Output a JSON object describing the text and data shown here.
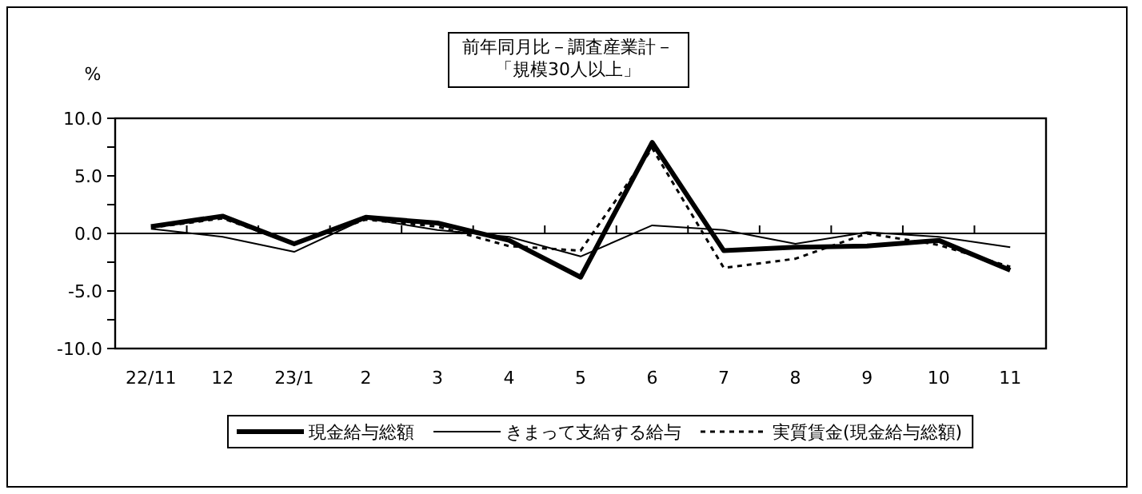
{
  "chart_data": {
    "type": "line",
    "title": "前年同月比－調査産業計－",
    "subtitle": "「規模30人以上」",
    "ylabel": "%",
    "categories": [
      "22/11",
      "12",
      "23/1",
      "2",
      "3",
      "4",
      "5",
      "6",
      "7",
      "8",
      "9",
      "10",
      "11"
    ],
    "series": [
      {
        "name": "現金給与総額",
        "color": "#000000",
        "line_style": "solid",
        "values": [
          0.6,
          1.5,
          -0.9,
          1.4,
          0.9,
          -0.6,
          -3.8,
          7.9,
          -1.5,
          -1.2,
          -1.1,
          -0.6,
          -3.2
        ]
      },
      {
        "name": "きまって支給する給与",
        "color": "#000000",
        "line_style": "solid",
        "values": [
          0.4,
          -0.3,
          -1.6,
          1.3,
          0.3,
          -0.3,
          -2.0,
          0.7,
          0.3,
          -0.9,
          0.1,
          -0.3,
          -1.2
        ]
      },
      {
        "name": "実質賃金(現金給与総額)",
        "color": "#000000",
        "line_style": "dotted",
        "values": [
          0.5,
          1.3,
          -0.9,
          1.2,
          0.6,
          -1.1,
          -1.5,
          7.4,
          -3.0,
          -2.2,
          0.0,
          -1.0,
          -2.9
        ]
      }
    ],
    "ylim": [
      -10,
      10
    ],
    "yticks": [
      {
        "value": -10,
        "label": "-10.0"
      },
      {
        "value": -7.5,
        "label": null
      },
      {
        "value": -5,
        "label": "-5.0"
      },
      {
        "value": -2.5,
        "label": null
      },
      {
        "value": 0,
        "label": "0.0"
      },
      {
        "value": 2.5,
        "label": null
      },
      {
        "value": 5,
        "label": "5.0"
      },
      {
        "value": 7.5,
        "label": null
      },
      {
        "value": 10,
        "label": "10.0"
      }
    ],
    "legend": "bottom",
    "marker": "none"
  }
}
